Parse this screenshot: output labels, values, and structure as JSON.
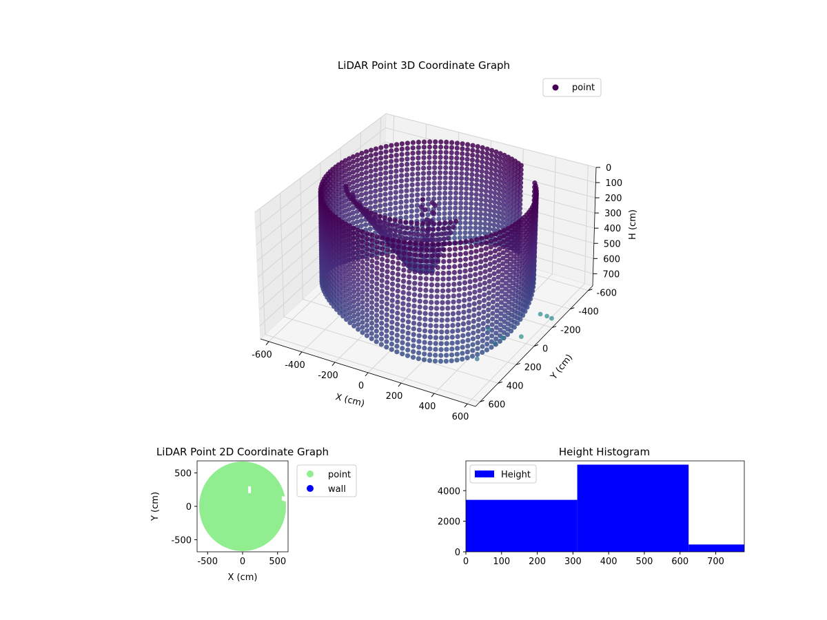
{
  "chart_data": [
    {
      "type": "scatter3d",
      "title": "LiDAR Point 3D Coordinate Graph",
      "xlabel": "X (cm)",
      "ylabel": "Y (cm)",
      "zlabel": "H (cm)",
      "xlim": [
        -650,
        650
      ],
      "ylim": [
        -650,
        650
      ],
      "zlim": [
        780,
        0
      ],
      "x_ticks": [
        -600,
        -400,
        -200,
        0,
        200,
        400,
        600
      ],
      "y_ticks": [
        -600,
        -400,
        -200,
        0,
        200,
        400,
        600
      ],
      "z_ticks": [
        0,
        100,
        200,
        300,
        400,
        500,
        600,
        700
      ],
      "legend": [
        {
          "label": "point",
          "color": "#440154"
        }
      ],
      "legend_position": "top-right",
      "grid": true,
      "colormap": "viridis",
      "structure": {
        "wall_radius": 560,
        "wall_top_h": 0,
        "wall_bottom_h": 640,
        "wall_angle_step_deg": 3,
        "inner_sheet_radius": 420,
        "inner_sheet_start_deg": 40,
        "inner_sheet_end_deg": 150
      },
      "outliers": [
        {
          "x": 600,
          "y": 560,
          "h": 560
        },
        {
          "x": 450,
          "y": 150,
          "h": 650
        },
        {
          "x": 520,
          "y": 120,
          "h": 700
        },
        {
          "x": 560,
          "y": -20,
          "h": 760
        },
        {
          "x": 560,
          "y": -230,
          "h": 740
        },
        {
          "x": 600,
          "y": -230,
          "h": 740
        },
        {
          "x": 640,
          "y": -210,
          "h": 730
        },
        {
          "x": 610,
          "y": 380,
          "h": 560
        }
      ]
    },
    {
      "type": "scatter",
      "title": "LiDAR Point 2D Coordinate Graph",
      "xlabel": "X (cm)",
      "ylabel": "Y (cm)",
      "xlim": [
        -650,
        650
      ],
      "ylim": [
        -680,
        680
      ],
      "x_ticks": [
        -500,
        0,
        500
      ],
      "y_ticks": [
        -500,
        0,
        500
      ],
      "series": [
        {
          "name": "point",
          "color": "#90ee90"
        },
        {
          "name": "wall",
          "color": "#0000ff"
        }
      ],
      "legend_position": "outside-right",
      "point_cloud_radius": 620
    },
    {
      "type": "histogram",
      "title": "Height Histogram",
      "xlabel": "",
      "ylabel": "",
      "xlim": [
        0,
        780
      ],
      "ylim": [
        0,
        5950
      ],
      "x_ticks": [
        0,
        100,
        200,
        300,
        400,
        500,
        600,
        700
      ],
      "y_ticks": [
        0,
        2000,
        4000
      ],
      "bins": [
        {
          "start": 0,
          "end": 312,
          "count": 3400
        },
        {
          "start": 312,
          "end": 624,
          "count": 5700
        },
        {
          "start": 624,
          "end": 780,
          "count": 480
        }
      ],
      "color": "#0000ff",
      "legend": [
        {
          "label": "Height",
          "color": "#0000ff"
        }
      ],
      "legend_position": "top-left"
    }
  ]
}
